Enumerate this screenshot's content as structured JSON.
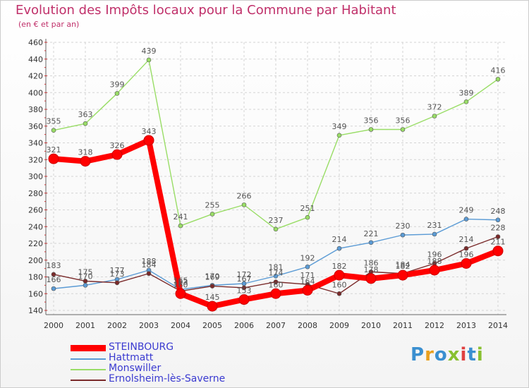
{
  "chart_data": {
    "type": "line",
    "title": "Evolution des Impôts locaux pour la Commune par Habitant",
    "subtitle": "(en € et par an)",
    "x": [
      "2000",
      "2001",
      "2002",
      "2003",
      "2004",
      "2005",
      "2006",
      "2007",
      "2008",
      "2009",
      "2010",
      "2011",
      "2012",
      "2013",
      "2014"
    ],
    "ylim": [
      140,
      460
    ],
    "yticks": [
      140,
      160,
      180,
      200,
      220,
      240,
      260,
      280,
      300,
      320,
      340,
      360,
      380,
      400,
      420,
      440,
      460
    ],
    "grid": true,
    "legend_position": "bottom-left",
    "series": [
      {
        "name": "STEINBOURG",
        "color": "#ff0000",
        "values": [
          321,
          318,
          326,
          343,
          160,
          145,
          153,
          160,
          164,
          182,
          178,
          182,
          188,
          196,
          211
        ]
      },
      {
        "name": "Hattmatt",
        "color": "#5b9bd5",
        "values": [
          166,
          170,
          177,
          188,
          165,
          170,
          172,
          181,
          192,
          214,
          221,
          230,
          231,
          249,
          248
        ]
      },
      {
        "name": "Monswiller",
        "color": "#99dd66",
        "values": [
          355,
          363,
          399,
          439,
          241,
          255,
          266,
          237,
          251,
          349,
          356,
          356,
          372,
          389,
          416
        ]
      },
      {
        "name": "Ernolsheim-lès-Saverne",
        "color": "#7a2a2a",
        "values": [
          183,
          175,
          173,
          184,
          163,
          169,
          167,
          174,
          171,
          160,
          186,
          184,
          196,
          214,
          228
        ]
      }
    ]
  },
  "logo": {
    "text": "Proxiti"
  }
}
